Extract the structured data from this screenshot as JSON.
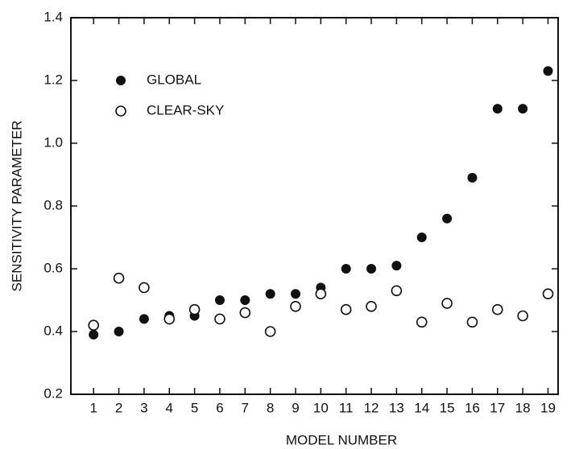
{
  "chart_data": {
    "type": "scatter",
    "xlabel": "MODEL NUMBER",
    "ylabel": "SENSITIVITY PARAMETER",
    "x": [
      1,
      2,
      3,
      4,
      5,
      6,
      7,
      8,
      9,
      10,
      11,
      12,
      13,
      14,
      15,
      16,
      17,
      18,
      19
    ],
    "series": [
      {
        "name": "GLOBAL",
        "color": "#111111",
        "marker": "filled",
        "values": [
          0.39,
          0.4,
          0.44,
          0.45,
          0.45,
          0.5,
          0.5,
          0.52,
          0.52,
          0.54,
          0.6,
          0.6,
          0.61,
          0.7,
          0.76,
          0.89,
          1.11,
          1.11,
          1.23
        ]
      },
      {
        "name": "CLEAR-SKY",
        "color": "#111111",
        "marker": "open",
        "values": [
          0.42,
          0.57,
          0.54,
          0.44,
          0.47,
          0.44,
          0.46,
          0.4,
          0.48,
          0.52,
          0.47,
          0.48,
          0.53,
          0.43,
          0.49,
          0.43,
          0.47,
          0.45,
          0.52
        ]
      }
    ],
    "xlim": [
      0.1,
      19.4
    ],
    "xticks": [
      1,
      2,
      3,
      4,
      5,
      6,
      7,
      8,
      9,
      10,
      11,
      12,
      13,
      14,
      15,
      16,
      17,
      18,
      19
    ],
    "ylim": [
      0.2,
      1.4
    ],
    "yticks": [
      0.2,
      0.4,
      0.6,
      0.8,
      {
        "value": 1.0,
        "label": "1.0"
      },
      1.2,
      1.4
    ],
    "legend": "upper left"
  }
}
